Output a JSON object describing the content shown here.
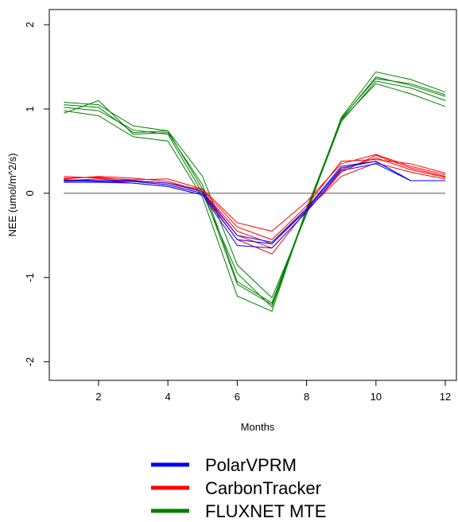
{
  "chart_data": {
    "type": "line",
    "xlabel": "Months",
    "ylabel": "NEE (umol/m^2/s)",
    "x": [
      1,
      2,
      3,
      4,
      5,
      6,
      7,
      8,
      9,
      10,
      11,
      12
    ],
    "xlim": [
      0.58,
      12.32
    ],
    "ylim": [
      -2.22,
      2.18
    ],
    "xticks": [
      2,
      4,
      6,
      8,
      10,
      12
    ],
    "yticks": [
      -2,
      -1,
      0,
      1,
      2
    ],
    "hline": 0,
    "series": [
      {
        "name": "PolarVPRM",
        "color": "#0000ff",
        "values": [
          [
            0.15,
            0.14,
            0.14,
            0.1,
            0.0,
            -0.55,
            -0.6,
            -0.2,
            0.3,
            0.38,
            0.15,
            0.15
          ],
          [
            0.13,
            0.13,
            0.12,
            0.08,
            -0.02,
            -0.62,
            -0.65,
            -0.22,
            0.27,
            0.35,
            0.15,
            0.15
          ],
          [
            0.16,
            0.15,
            0.15,
            0.12,
            0.02,
            -0.5,
            -0.58,
            -0.18,
            0.32,
            0.38,
            0.15,
            0.15
          ]
        ]
      },
      {
        "name": "CarbonTracker",
        "color": "#ff0000",
        "values": [
          [
            0.2,
            0.18,
            0.16,
            0.17,
            0.05,
            -0.35,
            -0.45,
            -0.1,
            0.35,
            0.46,
            0.32,
            0.22
          ],
          [
            0.17,
            0.2,
            0.18,
            0.14,
            0.02,
            -0.45,
            -0.6,
            -0.18,
            0.28,
            0.42,
            0.28,
            0.19
          ],
          [
            0.14,
            0.15,
            0.12,
            0.08,
            -0.02,
            -0.55,
            -0.72,
            -0.2,
            0.2,
            0.36,
            0.25,
            0.17
          ],
          [
            0.18,
            0.19,
            0.15,
            0.12,
            0.04,
            -0.4,
            -0.55,
            -0.15,
            0.38,
            0.4,
            0.35,
            0.24
          ],
          [
            0.15,
            0.17,
            0.14,
            0.1,
            0.0,
            -0.5,
            -0.65,
            -0.22,
            0.25,
            0.45,
            0.3,
            0.2
          ]
        ]
      },
      {
        "name": "FLUXNET MTE",
        "color": "#008000",
        "values": [
          [
            1.08,
            1.05,
            0.8,
            0.74,
            0.2,
            -0.85,
            -1.24,
            -0.25,
            0.9,
            1.44,
            1.35,
            1.2
          ],
          [
            0.95,
            1.1,
            0.7,
            0.72,
            0.1,
            -1.05,
            -1.3,
            -0.2,
            0.88,
            1.38,
            1.28,
            1.15
          ],
          [
            1.02,
            0.98,
            0.75,
            0.7,
            0.0,
            -0.95,
            -1.35,
            -0.22,
            0.85,
            1.33,
            1.25,
            1.1
          ],
          [
            0.98,
            0.92,
            0.67,
            0.62,
            -0.05,
            -1.22,
            -1.4,
            -0.18,
            0.87,
            1.3,
            1.18,
            1.03
          ],
          [
            1.05,
            1.02,
            0.72,
            0.74,
            0.05,
            -1.08,
            -1.32,
            -0.2,
            0.89,
            1.36,
            1.3,
            1.17
          ]
        ]
      }
    ]
  }
}
